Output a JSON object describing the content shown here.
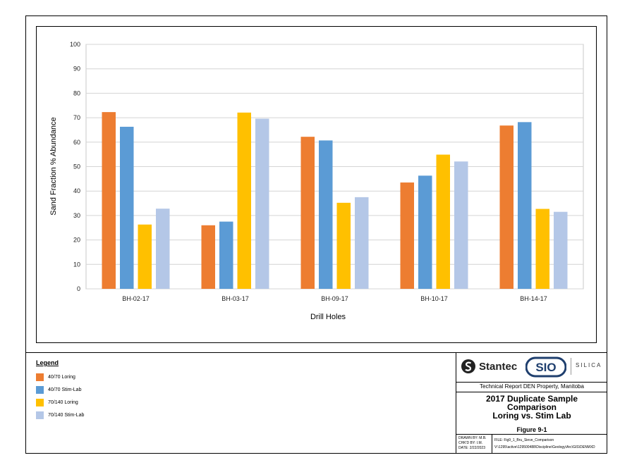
{
  "chart_data": {
    "type": "bar",
    "categories": [
      "BH-02-17",
      "BH-03-17",
      "BH-09-17",
      "BH-10-17",
      "BH-14-17"
    ],
    "series": [
      {
        "name": "40/70 Loring",
        "color": "#ED7D31",
        "values": [
          72.3,
          26.0,
          62.2,
          43.5,
          66.8
        ]
      },
      {
        "name": "40/70 Stim-Lab",
        "color": "#5B9BD5",
        "values": [
          66.3,
          27.5,
          60.7,
          46.3,
          68.2
        ]
      },
      {
        "name": "70/140 Loring",
        "color": "#FFC000",
        "values": [
          26.3,
          72.1,
          35.2,
          54.9,
          32.7
        ]
      },
      {
        "name": "70/140 Stim-Lab",
        "color": "#B4C7E7",
        "values": [
          32.8,
          69.6,
          37.5,
          52.1,
          31.5
        ]
      }
    ],
    "xlabel": "Drill Holes",
    "ylabel": "Sand Fraction % Abundance",
    "ylim": [
      0,
      100
    ],
    "yticks": [
      0,
      10,
      20,
      30,
      40,
      50,
      60,
      70,
      80,
      90,
      100
    ],
    "grid": true,
    "legend_placement": "bottom-left"
  },
  "legend": {
    "title": "Legend",
    "items": [
      "40/70 Loring",
      "40/70 Stim-Lab",
      "70/140 Loring",
      "70/140 Stim-Lab"
    ]
  },
  "title_block": {
    "company": "Stantec",
    "client_logo": "SIO",
    "client_word": "SILICA",
    "report": "Technical Report DEN Property, Manitoba",
    "figure_title_1": "2017 Duplicate Sample",
    "figure_title_2": "Comparison",
    "figure_title_3": "Loring vs. Stim Lab",
    "figure_number": "Figure 9-1",
    "drawn_by": "DRAWN BY: M.B.",
    "checked_by": "CHK'D BY: I.M.",
    "date": "DATE:  2/22/2023",
    "file": "FILE: Fig9_1_Bru_Sieve_Comparison",
    "path": "V:\\1295\\active\\129500488\\Discipline\\Geology\\Arc\\GIS\\DENMXD"
  }
}
